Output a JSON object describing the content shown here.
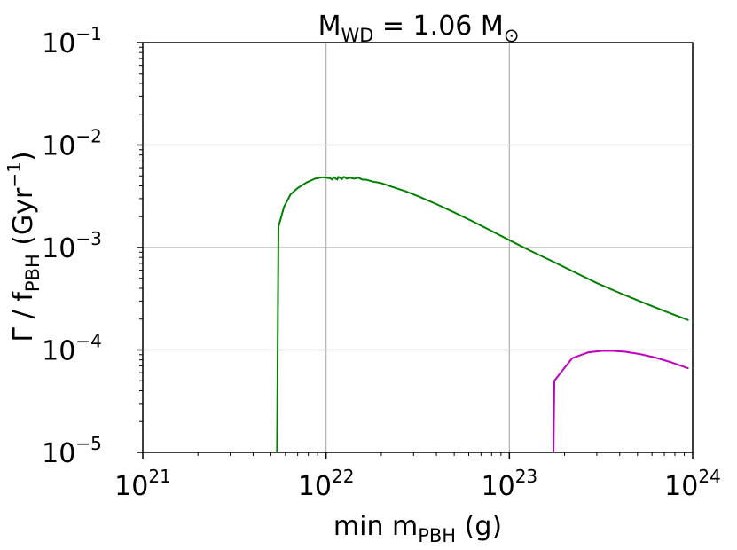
{
  "chart_data": {
    "type": "line",
    "title": {
      "main": "M",
      "sub": "WD",
      "rest": "  =  1.06 M",
      "unit_sub": "⊙"
    },
    "xlabel": {
      "main": "min m",
      "sub": "PBH",
      "rest": " (g)"
    },
    "ylabel": {
      "main": "Γ / f",
      "sub": "PBH",
      "rest": " (Gyr",
      "sup": "−1",
      "end": ")"
    },
    "x_scale": "log",
    "y_scale": "log",
    "xlim": [
      1e+21,
      1e+24
    ],
    "ylim": [
      1e-05,
      0.1
    ],
    "x_ticks": [
      {
        "value": 1e+21,
        "base": "10",
        "exp": "21"
      },
      {
        "value": 1e+22,
        "base": "10",
        "exp": "22"
      },
      {
        "value": 1e+23,
        "base": "10",
        "exp": "23"
      },
      {
        "value": 1e+24,
        "base": "10",
        "exp": "24"
      }
    ],
    "y_ticks": [
      {
        "value": 1e-05,
        "base": "10",
        "exp": "−5"
      },
      {
        "value": 0.0001,
        "base": "10",
        "exp": "−4"
      },
      {
        "value": 0.001,
        "base": "10",
        "exp": "−3"
      },
      {
        "value": 0.01,
        "base": "10",
        "exp": "−2"
      },
      {
        "value": 0.1,
        "base": "10",
        "exp": "−1"
      }
    ],
    "grid": true,
    "series": [
      {
        "color": "#008000",
        "x": [
          5.4e+21,
          5.5e+21,
          5.9e+21,
          6.4e+21,
          7e+21,
          7.8e+21,
          8.7e+21,
          9.6e+21,
          1.05e+22,
          1.08e+22,
          1.1e+22,
          1.15e+22,
          1.17e+22,
          1.22e+22,
          1.25e+22,
          1.3e+22,
          1.35e+22,
          1.42e+22,
          1.5e+22,
          1.58e+22,
          1.65e+22,
          1.8e+22,
          2e+22,
          2.3e+22,
          2.7e+22,
          3.2e+22,
          4e+22,
          5e+22,
          6.3e+22,
          8e+22,
          1e+23,
          1.3e+23,
          1.7e+23,
          2.2e+23,
          3e+23,
          4e+23,
          5.5e+23,
          7e+23,
          9.5e+23
        ],
        "y": [
          1e-05,
          0.0016,
          0.0025,
          0.0033,
          0.0038,
          0.0043,
          0.0047,
          0.00485,
          0.00475,
          0.0046,
          0.00485,
          0.0046,
          0.0049,
          0.00465,
          0.0049,
          0.0047,
          0.0048,
          0.0047,
          0.0048,
          0.0046,
          0.0046,
          0.0044,
          0.00425,
          0.0039,
          0.00355,
          0.00315,
          0.00265,
          0.0022,
          0.0018,
          0.00145,
          0.00118,
          0.00093,
          0.00074,
          0.00059,
          0.00045,
          0.00036,
          0.000285,
          0.00024,
          0.000195
        ]
      },
      {
        "color": "#bf00bf",
        "x": [
          1.74e+23,
          1.76e+23,
          2.2e+23,
          2.7e+23,
          3.2e+23,
          3.7e+23,
          4.3e+23,
          5.2e+23,
          6.3e+23,
          7.6e+23,
          9.5e+23
        ],
        "y": [
          1e-05,
          5e-05,
          8.3e-05,
          9.5e-05,
          9.8e-05,
          9.8e-05,
          9.6e-05,
          9.1e-05,
          8.4e-05,
          7.6e-05,
          6.6e-05
        ]
      }
    ]
  }
}
